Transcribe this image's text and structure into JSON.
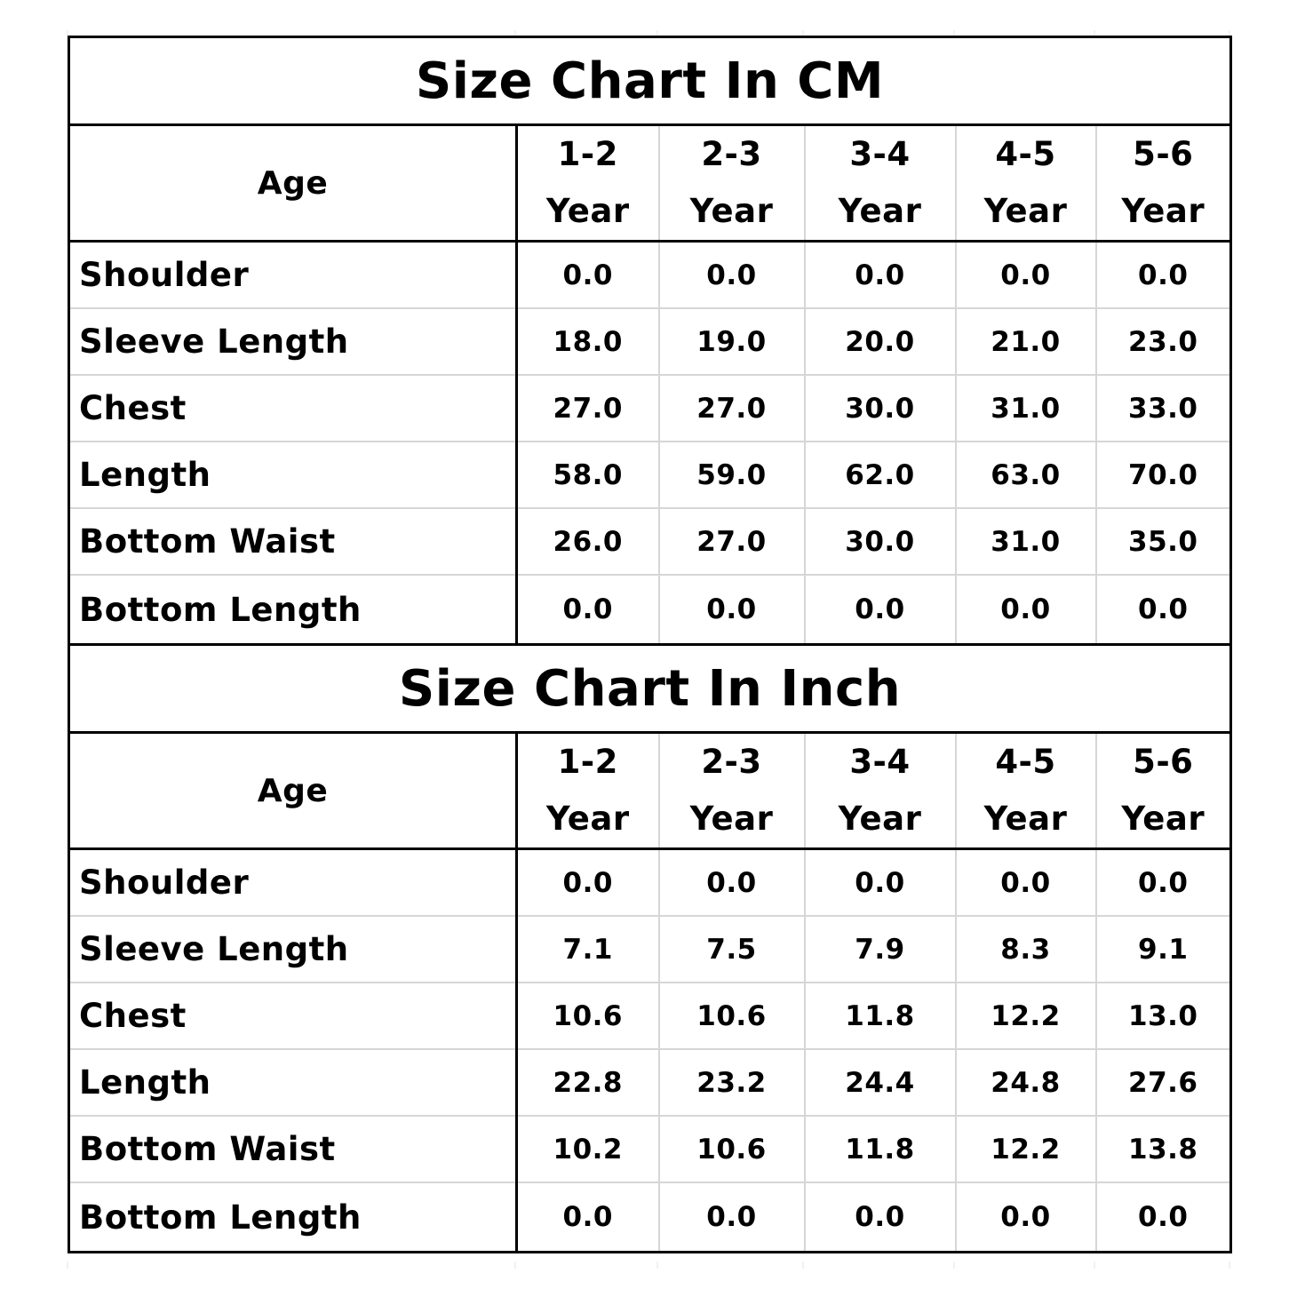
{
  "cm_table": {
    "title": "Size Chart In CM",
    "age_label": "Age",
    "ages": [
      {
        "range": "1-2",
        "unit": "Year"
      },
      {
        "range": "2-3",
        "unit": "Year"
      },
      {
        "range": "3-4",
        "unit": "Year"
      },
      {
        "range": "4-5",
        "unit": "Year"
      },
      {
        "range": "5-6",
        "unit": "Year"
      }
    ],
    "rows": [
      {
        "label": "Shoulder",
        "values": [
          "0.0",
          "0.0",
          "0.0",
          "0.0",
          "0.0"
        ]
      },
      {
        "label": "Sleeve Length",
        "values": [
          "18.0",
          "19.0",
          "20.0",
          "21.0",
          "23.0"
        ]
      },
      {
        "label": "Chest",
        "values": [
          "27.0",
          "27.0",
          "30.0",
          "31.0",
          "33.0"
        ]
      },
      {
        "label": "Length",
        "values": [
          "58.0",
          "59.0",
          "62.0",
          "63.0",
          "70.0"
        ]
      },
      {
        "label": "Bottom Waist",
        "values": [
          "26.0",
          "27.0",
          "30.0",
          "31.0",
          "35.0"
        ]
      },
      {
        "label": "Bottom Length",
        "values": [
          "0.0",
          "0.0",
          "0.0",
          "0.0",
          "0.0"
        ]
      }
    ]
  },
  "inch_table": {
    "title": "Size Chart In Inch",
    "age_label": "Age",
    "ages": [
      {
        "range": "1-2",
        "unit": "Year"
      },
      {
        "range": "2-3",
        "unit": "Year"
      },
      {
        "range": "3-4",
        "unit": "Year"
      },
      {
        "range": "4-5",
        "unit": "Year"
      },
      {
        "range": "5-6",
        "unit": "Year"
      }
    ],
    "rows": [
      {
        "label": "Shoulder",
        "values": [
          "0.0",
          "0.0",
          "0.0",
          "0.0",
          "0.0"
        ]
      },
      {
        "label": "Sleeve Length",
        "values": [
          "7.1",
          "7.5",
          "7.9",
          "8.3",
          "9.1"
        ]
      },
      {
        "label": "Chest",
        "values": [
          "10.6",
          "10.6",
          "11.8",
          "12.2",
          "13.0"
        ]
      },
      {
        "label": "Length",
        "values": [
          "22.8",
          "23.2",
          "24.4",
          "24.8",
          "27.6"
        ]
      },
      {
        "label": "Bottom Waist",
        "values": [
          "10.2",
          "10.6",
          "11.8",
          "12.2",
          "13.8"
        ]
      },
      {
        "label": "Bottom Length",
        "values": [
          "0.0",
          "0.0",
          "0.0",
          "0.0",
          "0.0"
        ]
      }
    ]
  }
}
